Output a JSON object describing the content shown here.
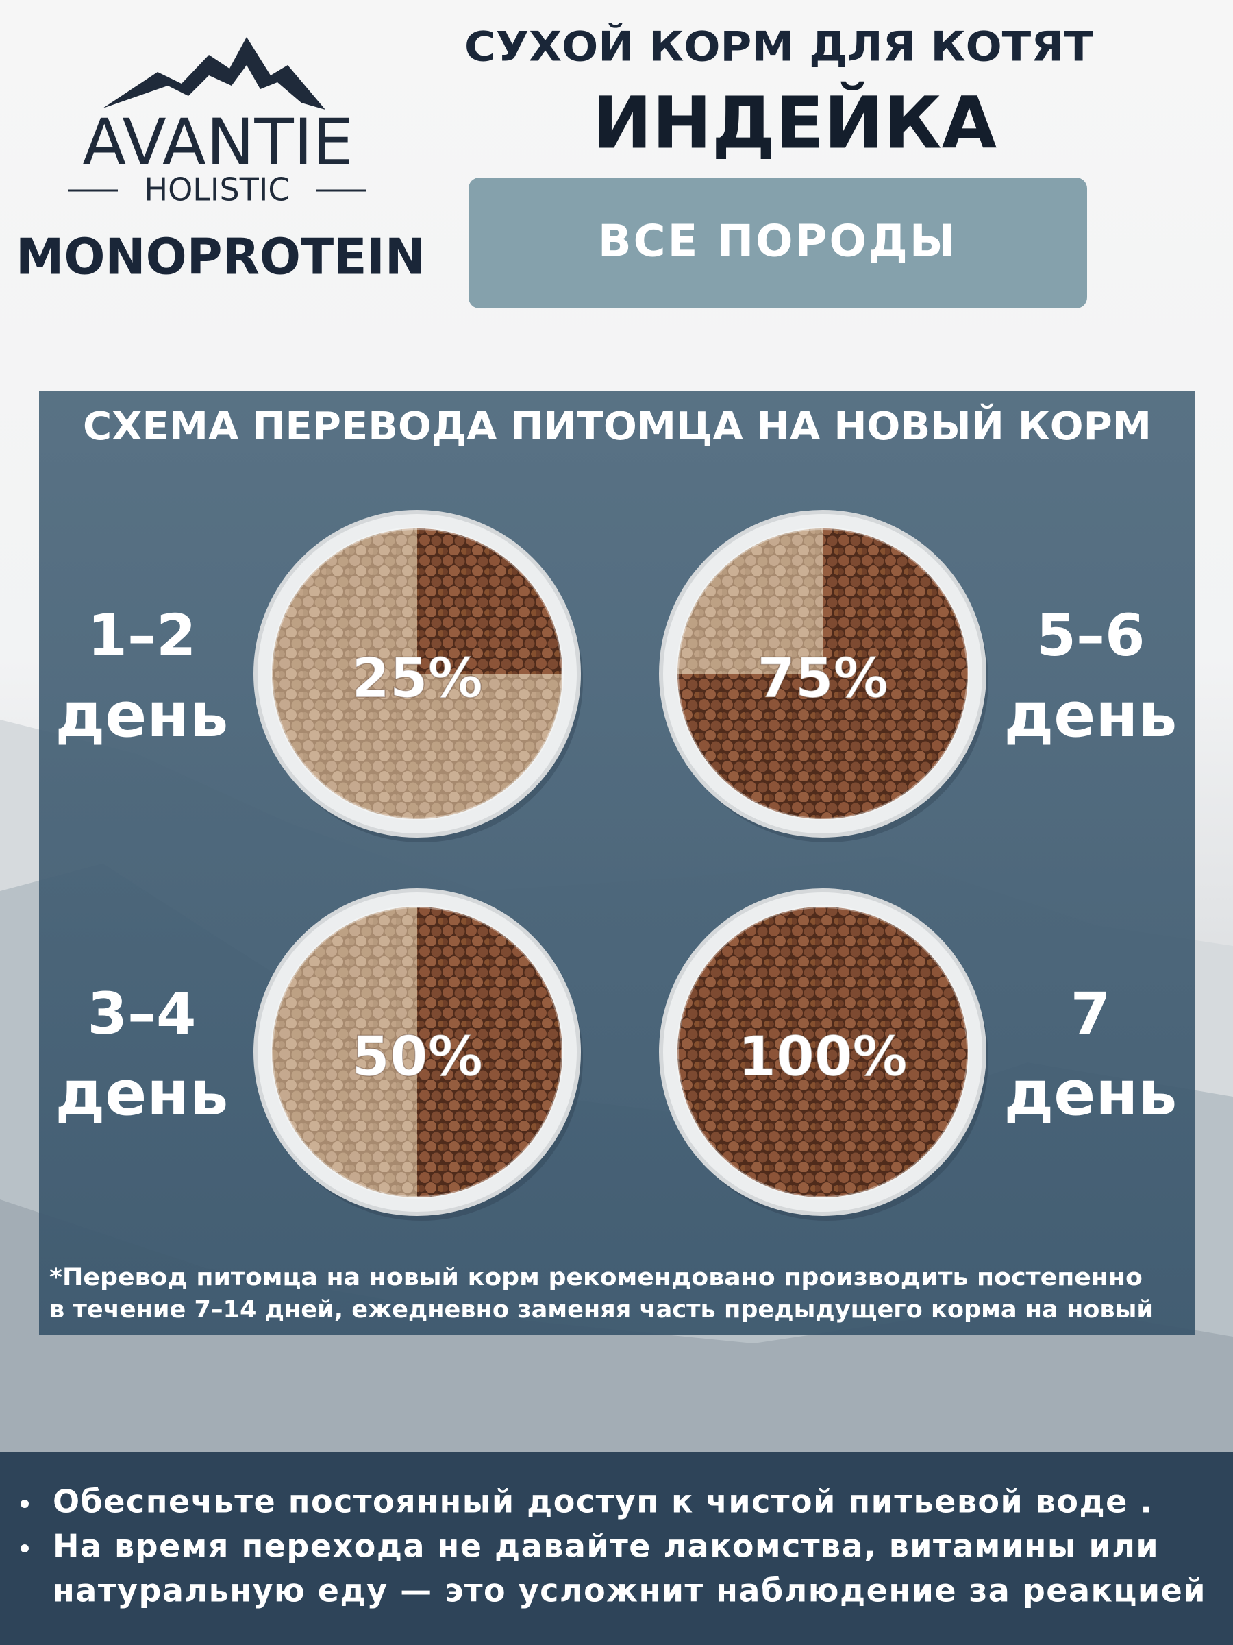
{
  "logo": {
    "brand": "AVANTIE",
    "line": "HOLISTIC",
    "product_line": "MONOPROTEIN"
  },
  "header": {
    "title": "СУХОЙ КОРМ ДЛЯ КОТЯТ",
    "flavor": "ИНДЕЙКА",
    "badge": "ВСЕ ПОРОДЫ"
  },
  "scheme": {
    "title": "СХЕМА ПЕРЕВОДА ПИТОМЦА НА НОВЫЙ КОРМ",
    "stages": [
      {
        "day": "1–2",
        "day_unit": "день",
        "value": 25,
        "value_label": "25%"
      },
      {
        "day": "3–4",
        "day_unit": "день",
        "value": 50,
        "value_label": "50%"
      },
      {
        "day": "5–6",
        "day_unit": "день",
        "value": 75,
        "value_label": "75%"
      },
      {
        "day": "7",
        "day_unit": "день",
        "value": 100,
        "value_label": "100%"
      }
    ],
    "footnote": [
      "*Перевод питомца на новый корм рекомендовано производить постепенно",
      "в течение 7–14 дней, ежедневно заменяя часть предыдущего корма на новый"
    ]
  },
  "tips": [
    [
      "Обеспечьте постоянный доступ к чистой питьевой воде ."
    ],
    [
      "На время перехода не давайте лакомства, витамины или",
      "натуральную еду — это усложнит наблюдение за реакцией"
    ]
  ]
}
